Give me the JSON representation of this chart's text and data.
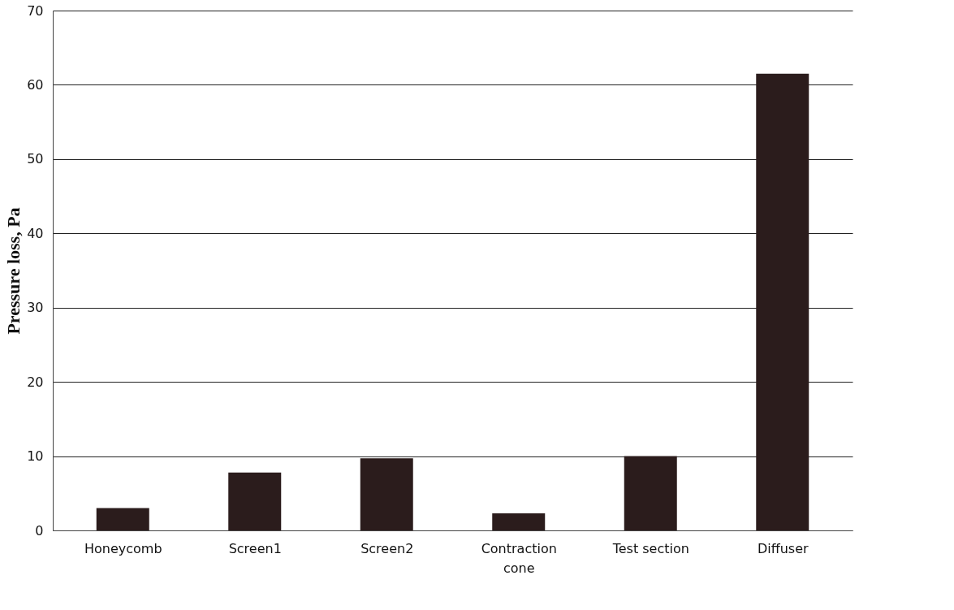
{
  "chart_data": {
    "type": "bar",
    "ylabel": "Pressure loss, Pa",
    "categories": [
      "Honeycomb",
      "Screen1",
      "Screen2",
      "Contraction cone",
      "Test section",
      "Diffuser"
    ],
    "values": [
      3.0,
      7.8,
      9.7,
      2.3,
      10.0,
      61.5
    ],
    "color": "#2b1c1c",
    "ylim": [
      0,
      70
    ],
    "yticks": [
      0,
      10,
      20,
      30,
      40,
      50,
      60,
      70
    ],
    "grid": "y"
  }
}
